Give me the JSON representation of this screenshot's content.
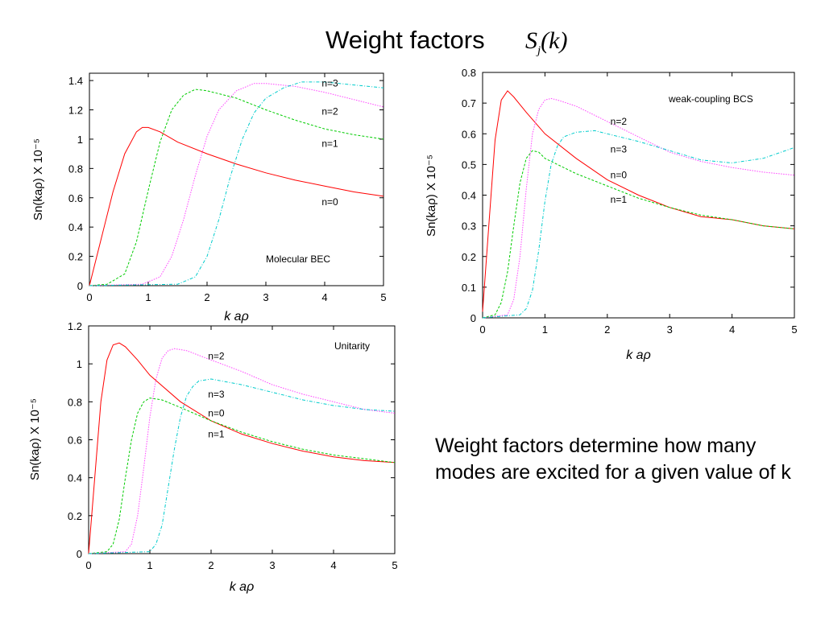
{
  "title": {
    "text": "Weight factors",
    "math_symbol": "S",
    "math_sub": "j",
    "math_arg": "(k)"
  },
  "description": "Weight factors determine how many modes are excited for a given value of k",
  "colors": {
    "n0": "#ff0000",
    "n1": "#00cc00",
    "n2": "#ff44ff",
    "n3": "#00cccc"
  },
  "chart_data": [
    {
      "type": "line",
      "annotation": "Molecular BEC",
      "xlabel": "k aρ",
      "ylabel": "Sn(kaρ) X 10⁻⁵",
      "xlim": [
        0,
        5
      ],
      "ylim": [
        0,
        1.45
      ],
      "xticks": [
        "0",
        "1",
        "2",
        "3",
        "4",
        "5"
      ],
      "yticks": [
        "0",
        "0.2",
        "0.4",
        "0.6",
        "0.8",
        "1",
        "1.2",
        "1.4"
      ],
      "curve_labels": [
        {
          "text": "n=3",
          "x": 3.95,
          "y": 1.38
        },
        {
          "text": "n=2",
          "x": 3.95,
          "y": 1.19
        },
        {
          "text": "n=1",
          "x": 3.95,
          "y": 0.97
        },
        {
          "text": "n=0",
          "x": 3.95,
          "y": 0.57
        }
      ],
      "series": [
        {
          "key": "n0",
          "x": [
            0,
            0.2,
            0.4,
            0.6,
            0.8,
            0.9,
            1.0,
            1.2,
            1.5,
            2,
            2.5,
            3,
            3.5,
            4,
            4.5,
            5
          ],
          "y": [
            0,
            0.32,
            0.64,
            0.9,
            1.05,
            1.08,
            1.08,
            1.05,
            0.98,
            0.9,
            0.83,
            0.77,
            0.72,
            0.68,
            0.64,
            0.61
          ]
        },
        {
          "key": "n1",
          "x": [
            0,
            0.3,
            0.6,
            0.8,
            1.0,
            1.2,
            1.4,
            1.6,
            1.8,
            2.0,
            2.5,
            3,
            3.5,
            4,
            4.5,
            5
          ],
          "y": [
            0,
            0.01,
            0.08,
            0.3,
            0.65,
            0.98,
            1.2,
            1.3,
            1.34,
            1.33,
            1.28,
            1.2,
            1.13,
            1.07,
            1.03,
            1.0
          ]
        },
        {
          "key": "n2",
          "x": [
            0,
            0.9,
            1.2,
            1.4,
            1.6,
            1.8,
            2.0,
            2.2,
            2.5,
            2.8,
            3,
            3.5,
            4,
            4.5,
            5
          ],
          "y": [
            0,
            0.01,
            0.06,
            0.2,
            0.45,
            0.75,
            1.02,
            1.2,
            1.33,
            1.38,
            1.38,
            1.36,
            1.32,
            1.27,
            1.22
          ]
        },
        {
          "key": "n3",
          "x": [
            0,
            1.5,
            1.8,
            2.0,
            2.2,
            2.4,
            2.6,
            2.8,
            3.0,
            3.3,
            3.6,
            4,
            4.5,
            5
          ],
          "y": [
            0,
            0.01,
            0.06,
            0.2,
            0.45,
            0.75,
            1.0,
            1.18,
            1.28,
            1.35,
            1.39,
            1.39,
            1.37,
            1.35
          ]
        }
      ]
    },
    {
      "type": "line",
      "annotation": "weak-coupling BCS",
      "xlabel": "k aρ",
      "ylabel": "Sn(kaρ) X 10⁻⁵",
      "xlim": [
        0,
        5
      ],
      "ylim": [
        0,
        0.8
      ],
      "xticks": [
        "0",
        "1",
        "2",
        "3",
        "4",
        "5"
      ],
      "yticks": [
        "0",
        "0.1",
        "0.2",
        "0.3",
        "0.4",
        "0.5",
        "0.6",
        "0.7",
        "0.8"
      ],
      "curve_labels": [
        {
          "text": "n=2",
          "x": 2.05,
          "y": 0.64
        },
        {
          "text": "n=3",
          "x": 2.05,
          "y": 0.55
        },
        {
          "text": "n=0",
          "x": 2.05,
          "y": 0.465
        },
        {
          "text": "n=1",
          "x": 2.05,
          "y": 0.385
        }
      ],
      "series": [
        {
          "key": "n0",
          "x": [
            0,
            0.1,
            0.2,
            0.3,
            0.4,
            0.5,
            0.7,
            1.0,
            1.5,
            2,
            2.5,
            3,
            3.5,
            4,
            4.5,
            5
          ],
          "y": [
            0.02,
            0.3,
            0.58,
            0.71,
            0.74,
            0.72,
            0.67,
            0.6,
            0.52,
            0.45,
            0.4,
            0.36,
            0.33,
            0.32,
            0.3,
            0.29
          ]
        },
        {
          "key": "n1",
          "x": [
            0,
            0.2,
            0.3,
            0.4,
            0.5,
            0.6,
            0.7,
            0.8,
            0.9,
            1.0,
            1.5,
            2,
            2.5,
            3,
            3.5,
            4,
            4.5,
            5
          ],
          "y": [
            0,
            0.01,
            0.05,
            0.15,
            0.3,
            0.44,
            0.52,
            0.545,
            0.54,
            0.52,
            0.47,
            0.43,
            0.39,
            0.36,
            0.335,
            0.32,
            0.3,
            0.29
          ]
        },
        {
          "key": "n2",
          "x": [
            0,
            0.4,
            0.5,
            0.6,
            0.7,
            0.8,
            0.9,
            1.0,
            1.1,
            1.2,
            1.5,
            2,
            2.5,
            3,
            3.5,
            4,
            4.5,
            5
          ],
          "y": [
            0,
            0.01,
            0.06,
            0.2,
            0.42,
            0.6,
            0.68,
            0.71,
            0.715,
            0.71,
            0.69,
            0.64,
            0.59,
            0.54,
            0.51,
            0.49,
            0.475,
            0.465
          ]
        },
        {
          "key": "n3",
          "x": [
            0,
            0.6,
            0.7,
            0.8,
            0.9,
            1.0,
            1.1,
            1.2,
            1.3,
            1.5,
            1.8,
            2,
            2.5,
            3,
            3.5,
            4,
            4.5,
            5
          ],
          "y": [
            0,
            0.01,
            0.03,
            0.09,
            0.22,
            0.38,
            0.5,
            0.56,
            0.59,
            0.605,
            0.61,
            0.6,
            0.575,
            0.545,
            0.515,
            0.505,
            0.52,
            0.555
          ]
        }
      ]
    },
    {
      "type": "line",
      "annotation": "Unitarity",
      "xlabel": "k aρ",
      "ylabel": "Sn(kaρ) X 10⁻⁵",
      "xlim": [
        0,
        5
      ],
      "ylim": [
        0,
        1.2
      ],
      "xticks": [
        "0",
        "1",
        "2",
        "3",
        "4",
        "5"
      ],
      "yticks": [
        "0",
        "0.2",
        "0.4",
        "0.6",
        "0.8",
        "1",
        "1.2"
      ],
      "curve_labels": [
        {
          "text": "n=2",
          "x": 1.95,
          "y": 1.04
        },
        {
          "text": "n=3",
          "x": 1.95,
          "y": 0.84
        },
        {
          "text": "n=0",
          "x": 1.95,
          "y": 0.74
        },
        {
          "text": "n=1",
          "x": 1.95,
          "y": 0.63
        }
      ],
      "series": [
        {
          "key": "n0",
          "x": [
            0,
            0.1,
            0.2,
            0.3,
            0.4,
            0.5,
            0.6,
            0.8,
            1.0,
            1.5,
            2,
            2.5,
            3,
            3.5,
            4,
            4.5,
            5
          ],
          "y": [
            0,
            0.4,
            0.8,
            1.02,
            1.1,
            1.11,
            1.09,
            1.02,
            0.94,
            0.8,
            0.7,
            0.63,
            0.58,
            0.54,
            0.51,
            0.49,
            0.48
          ]
        },
        {
          "key": "n1",
          "x": [
            0,
            0.3,
            0.4,
            0.5,
            0.6,
            0.7,
            0.8,
            0.9,
            1.0,
            1.2,
            1.5,
            2,
            2.5,
            3,
            3.5,
            4,
            4.5,
            5
          ],
          "y": [
            0,
            0.01,
            0.05,
            0.18,
            0.4,
            0.6,
            0.74,
            0.8,
            0.82,
            0.81,
            0.77,
            0.7,
            0.64,
            0.59,
            0.55,
            0.52,
            0.5,
            0.48
          ]
        },
        {
          "key": "n2",
          "x": [
            0,
            0.6,
            0.7,
            0.8,
            0.9,
            1.0,
            1.1,
            1.2,
            1.3,
            1.4,
            1.6,
            2,
            2.5,
            3,
            3.5,
            4,
            4.5,
            5
          ],
          "y": [
            0,
            0.01,
            0.05,
            0.2,
            0.45,
            0.72,
            0.92,
            1.03,
            1.07,
            1.08,
            1.07,
            1.02,
            0.96,
            0.89,
            0.84,
            0.8,
            0.76,
            0.74
          ]
        },
        {
          "key": "n3",
          "x": [
            0,
            1.0,
            1.1,
            1.2,
            1.3,
            1.4,
            1.5,
            1.6,
            1.7,
            1.8,
            2.0,
            2.5,
            3,
            3.5,
            4,
            4.5,
            5
          ],
          "y": [
            0,
            0.01,
            0.05,
            0.15,
            0.35,
            0.55,
            0.72,
            0.83,
            0.88,
            0.91,
            0.92,
            0.89,
            0.85,
            0.81,
            0.78,
            0.76,
            0.75
          ]
        }
      ]
    }
  ]
}
